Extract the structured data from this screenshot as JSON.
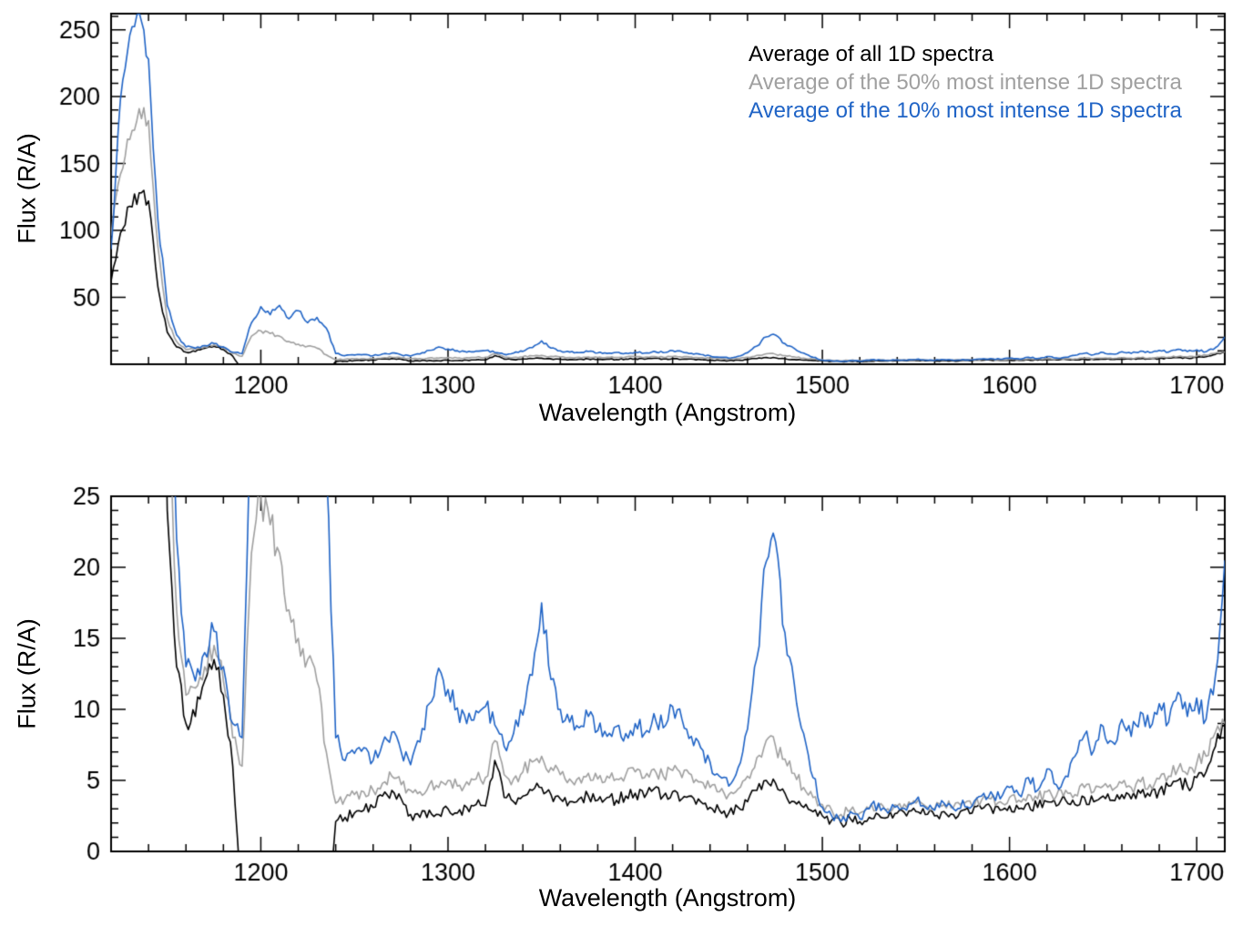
{
  "chart_data": {
    "type": "line",
    "title": "",
    "background": "#ffffff",
    "axis_color": "#000000",
    "x": {
      "start": 1120,
      "step": 5,
      "count": 120,
      "unit": "Angstrom"
    },
    "series": [
      {
        "name": "Average of all 1D spectra",
        "color": "#000000",
        "values": [
          62,
          98,
          118,
          128,
          122,
          58,
          24,
          13,
          9,
          9.5,
          12,
          13.5,
          11,
          6,
          -4,
          -7,
          -7,
          -7.5,
          -7,
          -7.5,
          -7,
          -7.5,
          -7,
          -5,
          2.1,
          2.4,
          2.7,
          2.9,
          3.1,
          3.9,
          4.3,
          3.7,
          2.6,
          2.4,
          2.9,
          2.6,
          3.0,
          2.7,
          3.1,
          3.3,
          3.2,
          6.4,
          3.8,
          3.5,
          3.9,
          4.3,
          4.5,
          4.0,
          3.7,
          3.5,
          3.7,
          3.9,
          3.6,
          3.8,
          3.6,
          3.9,
          4.1,
          3.8,
          4.4,
          3.9,
          4.2,
          3.7,
          3.9,
          3.5,
          3.1,
          2.9,
          2.7,
          3.1,
          3.5,
          4.3,
          5.0,
          4.8,
          4.1,
          3.5,
          3.1,
          2.8,
          2.5,
          2.2,
          2.0,
          2.3,
          2.1,
          2.4,
          2.6,
          2.4,
          2.7,
          2.5,
          2.8,
          2.6,
          2.5,
          2.8,
          2.6,
          2.9,
          2.7,
          3.0,
          3.1,
          2.9,
          3.2,
          3.0,
          3.4,
          3.1,
          3.5,
          3.2,
          3.6,
          3.3,
          3.8,
          3.5,
          3.9,
          3.6,
          4.0,
          3.7,
          4.1,
          3.9,
          4.3,
          4.6,
          5.0,
          4.6,
          5.2,
          5.6,
          7.4,
          8.8
        ]
      },
      {
        "name": "Average of the 50% most intense 1D spectra",
        "color": "#a0a0a0",
        "values": [
          96,
          142,
          168,
          191,
          182,
          88,
          34,
          17,
          11,
          11.5,
          13,
          14.5,
          12,
          8,
          6,
          21,
          25,
          23,
          21,
          17,
          15,
          13.5,
          12,
          7,
          3.4,
          3.7,
          4.0,
          4.2,
          4.3,
          4.8,
          5.3,
          4.7,
          4.3,
          4.2,
          4.7,
          4.5,
          5.0,
          4.6,
          4.9,
          5.1,
          5.2,
          7.8,
          5.4,
          5.1,
          5.6,
          6.3,
          6.7,
          5.9,
          5.4,
          5.1,
          5.2,
          5.5,
          5.1,
          5.3,
          5.1,
          5.4,
          5.6,
          5.2,
          5.8,
          5.3,
          5.7,
          5.2,
          5.4,
          4.9,
          4.5,
          4.2,
          4.0,
          4.4,
          5.3,
          6.6,
          7.8,
          7.4,
          6.5,
          5.5,
          4.5,
          3.8,
          3.3,
          2.9,
          2.6,
          2.9,
          2.7,
          3.0,
          3.2,
          3.0,
          3.2,
          3.1,
          3.4,
          3.2,
          3.0,
          3.3,
          3.1,
          3.5,
          3.2,
          3.6,
          3.7,
          3.5,
          3.8,
          3.6,
          4.0,
          3.7,
          4.2,
          3.9,
          4.3,
          4.0,
          4.5,
          4.2,
          4.6,
          4.3,
          4.8,
          4.5,
          4.9,
          4.7,
          5.1,
          5.3,
          5.8,
          5.4,
          6.2,
          6.7,
          8.4,
          9.0
        ]
      },
      {
        "name": "Average of the 10% most intense 1D spectra",
        "color": "#2064c6",
        "values": [
          86,
          198,
          246,
          263,
          228,
          108,
          44,
          22,
          13,
          12,
          14,
          15.5,
          13,
          9,
          8,
          31,
          43,
          37,
          44,
          34,
          40,
          31,
          35,
          27,
          8,
          6.4,
          6.9,
          7.3,
          6.4,
          7.6,
          8.4,
          7.0,
          6.1,
          7.7,
          10.4,
          12.9,
          11.4,
          10.1,
          9.0,
          9.9,
          10.2,
          8.9,
          7.4,
          8.3,
          9.6,
          12.4,
          17.5,
          12.1,
          10.0,
          9.1,
          8.7,
          9.5,
          8.5,
          8.1,
          8.8,
          8.3,
          9.0,
          8.3,
          9.7,
          8.7,
          10.2,
          9.3,
          8.1,
          7.3,
          6.3,
          5.3,
          4.6,
          5.9,
          8.6,
          13.6,
          20.4,
          21.8,
          15.4,
          11.8,
          8.3,
          5.2,
          3.1,
          2.5,
          2.1,
          2.8,
          2.3,
          3.0,
          3.4,
          2.7,
          3.2,
          2.9,
          3.6,
          3.1,
          2.9,
          3.4,
          3.0,
          3.6,
          3.2,
          3.9,
          4.2,
          3.7,
          4.5,
          4.0,
          5.2,
          4.3,
          5.8,
          4.7,
          5.3,
          6.7,
          8.2,
          7.1,
          8.8,
          7.7,
          9.3,
          8.1,
          9.8,
          8.7,
          10.4,
          9.1,
          11.2,
          9.5,
          10.8,
          9.3,
          12.4,
          20.5
        ]
      }
    ],
    "panels": [
      {
        "name": "top",
        "xlabel": "Wavelength (Angstrom)",
        "ylabel": "Flux (R/A)",
        "xlim": [
          1120,
          1715
        ],
        "ylim": [
          0,
          262
        ],
        "xticks": [
          1200,
          1300,
          1400,
          1500,
          1600,
          1700
        ],
        "xtick_major": 100,
        "xtick_minor": 20,
        "yticks": [
          50,
          100,
          150,
          200,
          250
        ],
        "ytick_major": 50,
        "ytick_minor": 10,
        "legend": true,
        "grid": false
      },
      {
        "name": "bottom",
        "xlabel": "Wavelength (Angstrom)",
        "ylabel": "Flux (R/A)",
        "xlim": [
          1120,
          1715
        ],
        "ylim": [
          0,
          25
        ],
        "xticks": [
          1200,
          1300,
          1400,
          1500,
          1600,
          1700
        ],
        "xtick_major": 100,
        "xtick_minor": 20,
        "yticks": [
          0,
          5,
          10,
          15,
          20,
          25
        ],
        "ytick_major": 5,
        "ytick_minor": 1,
        "legend": false,
        "grid": false
      }
    ],
    "legend_position": "top-right-inside"
  }
}
